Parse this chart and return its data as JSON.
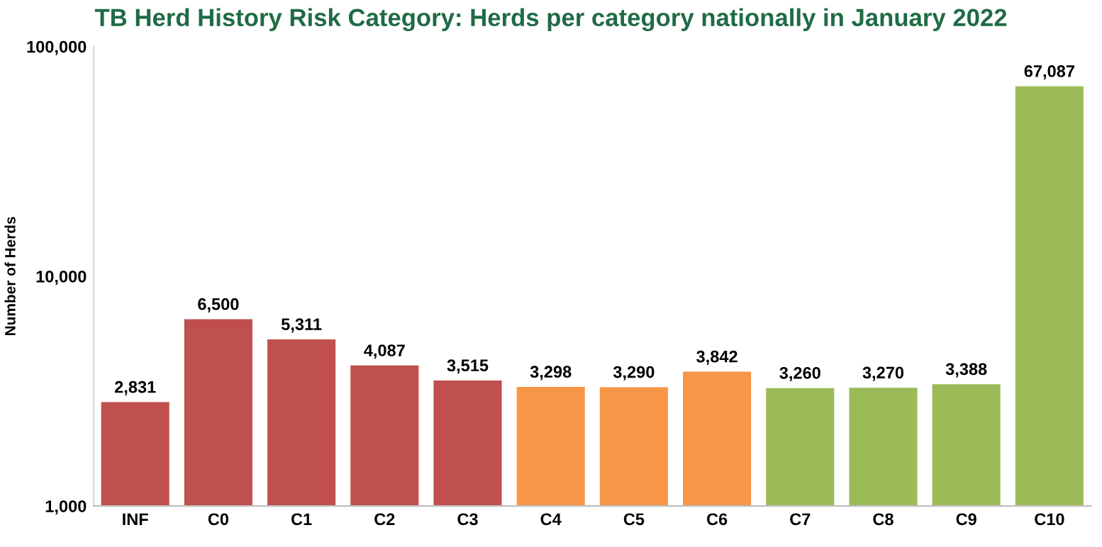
{
  "chart_data": {
    "type": "bar",
    "title": "TB Herd History Risk Category: Herds per category nationally in January 2022",
    "ylabel": "Number of Herds",
    "categories": [
      "INF",
      "C0",
      "C1",
      "C2",
      "C3",
      "C4",
      "C5",
      "C6",
      "C7",
      "C8",
      "C9",
      "C10"
    ],
    "values": [
      2831,
      6500,
      5311,
      4087,
      3515,
      3298,
      3290,
      3842,
      3260,
      3270,
      3388,
      67087
    ],
    "colors": [
      "#c0504d",
      "#c0504d",
      "#c0504d",
      "#c0504d",
      "#c0504d",
      "#f79646",
      "#f79646",
      "#f79646",
      "#9bbb59",
      "#9bbb59",
      "#9bbb59",
      "#9bbb59"
    ],
    "log": "y",
    "ylim": [
      1000,
      100000
    ],
    "yticks": [
      {
        "value": 1000,
        "label": "1,000"
      },
      {
        "value": 10000,
        "label": "10,000"
      },
      {
        "value": 100000,
        "label": "100,000"
      }
    ],
    "value_labels": [
      "2,831",
      "6,500",
      "5,311",
      "4,087",
      "3,515",
      "3,298",
      "3,290",
      "3,842",
      "3,260",
      "3,270",
      "3,388",
      "67,087"
    ],
    "grid": false,
    "legend": false
  }
}
